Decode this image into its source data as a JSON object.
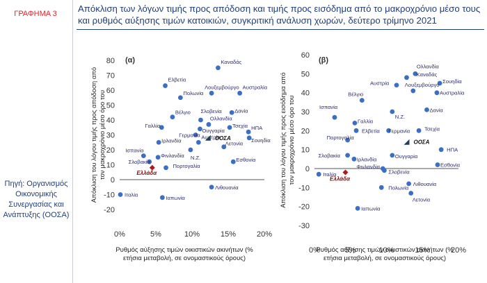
{
  "header": {
    "label": "ΓΡΑΦΗΜΑ 3",
    "title": "Απόκλιση των λόγων τιμής προς απόδοση και τιμής προς εισόδημα από το μακροχρόνιο μέσο τους και ρυθμός αύξησης τιμών κατοικιών, συγκριτική ανάλυση χωρών, δεύτερο τρίμηνο 2021",
    "source": "Πηγή: Οργανισμός Οικονομικής Συνεργασίας και Ανάπτυξης (ΟΟΣΑ)"
  },
  "colors": {
    "point": "#3a6fc4",
    "greece": "#b01a1f",
    "oecd": "#1f3e5a",
    "text": "#1f3e7a"
  },
  "chart_data": [
    {
      "type": "scatter",
      "panel_label": "(α)",
      "xlabel_lines": [
        "Ρυθμός αύξησης τιμών οικιστικών ακινήτων (%",
        "ετήσια μεταβολή, σε ονομαστικούς όρους)"
      ],
      "ylabel_lines": [
        "Απόκλιση του λόγου τιμής προς απόδοση από",
        "τον μακροχρόνιο μέσο όρο του"
      ],
      "xlim": [
        0,
        20
      ],
      "ylim": [
        -20,
        80
      ],
      "xticks": [
        0,
        5,
        10,
        15,
        20
      ],
      "xtick_labels": [
        "0%",
        "5%",
        "10%",
        "15%",
        "20%"
      ],
      "yticks": [
        -20,
        -10,
        0,
        10,
        20,
        30,
        40,
        50,
        60,
        70,
        80
      ],
      "points": [
        {
          "name": "Καναδάς",
          "x": 13.6,
          "y": 75,
          "dx": 4,
          "dy": -6
        },
        {
          "name": "Ελβετία",
          "x": 6.3,
          "y": 63,
          "dx": 4,
          "dy": -6
        },
        {
          "name": "Λουξεμβούργο",
          "x": 12.7,
          "y": 58,
          "dx": -10,
          "dy": -6
        },
        {
          "name": "Αυστραλία",
          "x": 16.6,
          "y": 58,
          "dx": 4,
          "dy": -6
        },
        {
          "name": "Πολωνία",
          "x": 8.4,
          "y": 55,
          "dx": 4,
          "dy": -4
        },
        {
          "name": "Βέλγιο",
          "x": 7.3,
          "y": 42,
          "dx": 4,
          "dy": -4
        },
        {
          "name": "Σλοβενία",
          "x": 11.2,
          "y": 40,
          "dx": 0,
          "dy": -10
        },
        {
          "name": "Δανία",
          "x": 15.5,
          "y": 45,
          "dx": 4,
          "dy": 0
        },
        {
          "name": "Γαλλία",
          "x": 5.8,
          "y": 35,
          "dx": -24,
          "dy": 0
        },
        {
          "name": "Ολλανδία",
          "x": 12.3,
          "y": 37,
          "dx": 2,
          "dy": -6
        },
        {
          "name": "Ουγγαρία",
          "x": 11.1,
          "y": 34,
          "dx": 3,
          "dy": 5
        },
        {
          "name": "Τσεχία",
          "x": 15.2,
          "y": 35,
          "dx": 4,
          "dy": 0
        },
        {
          "name": "Γερμανία",
          "x": 10.5,
          "y": 30,
          "dx": -24,
          "dy": 3
        },
        {
          "name": "ΗΠΑ",
          "x": 17.8,
          "y": 32,
          "dx": 4,
          "dy": -3
        },
        {
          "name": "Σουηδία",
          "x": 17.9,
          "y": 28,
          "dx": 3,
          "dy": 6
        },
        {
          "name": "Αυστρία",
          "x": 10.9,
          "y": 25,
          "dx": 4,
          "dy": -5
        },
        {
          "name": "Ιρλανδία",
          "x": 5.4,
          "y": 25,
          "dx": 4,
          "dy": 0
        },
        {
          "name": "Λετονία",
          "x": 14.4,
          "y": 22,
          "dx": 2,
          "dy": -2
        },
        {
          "name": "Ισπανία",
          "x": 3.3,
          "y": 16,
          "dx": -26,
          "dy": -5
        },
        {
          "name": "Φινλανδία",
          "x": 5.3,
          "y": 15,
          "dx": 4,
          "dy": 0
        },
        {
          "name": "Ν.Ζ.",
          "x": 9.8,
          "y": 20,
          "dx": 0,
          "dy": 14
        },
        {
          "name": "Εσθονία",
          "x": 15.7,
          "y": 12,
          "dx": 4,
          "dy": 0
        },
        {
          "name": "Σλοβακία",
          "x": 4.1,
          "y": 12,
          "dx": -30,
          "dy": 3
        },
        {
          "name": "Πορτογαλία",
          "x": 6.4,
          "y": 8,
          "dx": 10,
          "dy": 0
        },
        {
          "name": "Ιταλία",
          "x": 0.1,
          "y": -10,
          "dx": 6,
          "dy": 3
        },
        {
          "name": "Ιαπωνία",
          "x": 5.9,
          "y": -12,
          "dx": 5,
          "dy": 3
        },
        {
          "name": "Λιθουανία",
          "x": 12.7,
          "y": -5,
          "dx": 5,
          "dy": 3
        }
      ],
      "greece": {
        "name": "Ελλάδα",
        "x": 4.5,
        "y": 8,
        "dx": -8,
        "dy": 10
      },
      "oecd": {
        "name": "ΟΟΣΑ",
        "x": 12.2,
        "y": 28,
        "dx": 10,
        "dy": 0
      }
    },
    {
      "type": "scatter",
      "panel_label": "(β)",
      "xlabel_lines": [
        "Ρυθμός αύξησης τιμών οικιστικών ακινήτων (%",
        "ετήσια μεταβολή, σε ονομαστικούς όρους)"
      ],
      "ylabel_lines": [
        "Απόκλιση του λόγου τιμής προς εισόδημα από",
        "τον μακροχρόνιο μέσο όρο του"
      ],
      "xlim": [
        0,
        20
      ],
      "ylim": [
        -30,
        60
      ],
      "xticks": [
        0,
        5,
        10,
        15,
        20
      ],
      "xtick_labels": [
        "0%",
        "5%",
        "10%",
        "15%",
        "20%"
      ],
      "yticks": [
        -30,
        -20,
        -10,
        0,
        10,
        20,
        30,
        40,
        50,
        60
      ],
      "points": [
        {
          "name": "Ολλανδία",
          "x": 14.0,
          "y": 50,
          "dx": 2,
          "dy": -8
        },
        {
          "name": "Καναδάς",
          "x": 12.8,
          "y": 48,
          "dx": 14,
          "dy": -2
        },
        {
          "name": "Σουηδία",
          "x": 17.4,
          "y": 45,
          "dx": 4,
          "dy": 0
        },
        {
          "name": "Αυστρία",
          "x": 11.4,
          "y": 44,
          "dx": -38,
          "dy": 0
        },
        {
          "name": "Λουξεμβούργο",
          "x": 13.7,
          "y": 41,
          "dx": -12,
          "dy": -6
        },
        {
          "name": "Αυστραλία",
          "x": 17.0,
          "y": 40,
          "dx": 4,
          "dy": 3
        },
        {
          "name": "Βέλγιο",
          "x": 6.6,
          "y": 36,
          "dx": -20,
          "dy": -6
        },
        {
          "name": "Ισπανία",
          "x": 2.8,
          "y": 27,
          "dx": -22,
          "dy": -12
        },
        {
          "name": "Ν.Ζ.",
          "x": 10.8,
          "y": 30,
          "dx": 4,
          "dy": 10
        },
        {
          "name": "Δανία",
          "x": 15.6,
          "y": 31,
          "dx": 4,
          "dy": 3
        },
        {
          "name": "Γαλλία",
          "x": 5.6,
          "y": 24,
          "dx": 4,
          "dy": 0
        },
        {
          "name": "Ελβετία",
          "x": 5.8,
          "y": 20,
          "dx": 8,
          "dy": 3
        },
        {
          "name": "Γερμανία",
          "x": 10.3,
          "y": 20,
          "dx": 0,
          "dy": 3
        },
        {
          "name": "Τσεχία",
          "x": 14.5,
          "y": 20,
          "dx": 8,
          "dy": 0
        },
        {
          "name": "Πορτογαλία",
          "x": 4.6,
          "y": 15,
          "dx": -30,
          "dy": -1
        },
        {
          "name": "ΗΠΑ",
          "x": 17.6,
          "y": 10,
          "dx": 8,
          "dy": 3
        },
        {
          "name": "Σλοβακία",
          "x": 4.6,
          "y": 7,
          "dx": -42,
          "dy": 3
        },
        {
          "name": "Ιρλανδία",
          "x": 5.5,
          "y": 5,
          "dx": 4,
          "dy": 3
        },
        {
          "name": "Ουγγαρία",
          "x": 10.8,
          "y": 7,
          "dx": 4,
          "dy": 4
        },
        {
          "name": "Εσθονία",
          "x": 17.1,
          "y": 2,
          "dx": 4,
          "dy": 3
        },
        {
          "name": "Φινλανδία",
          "x": 9.5,
          "y": 0,
          "dx": -38,
          "dy": 0
        },
        {
          "name": "Σλοβενία",
          "x": 9.7,
          "y": -1,
          "dx": 6,
          "dy": 5
        },
        {
          "name": "Ιταλία",
          "x": 0.6,
          "y": -3,
          "dx": 6,
          "dy": 3
        },
        {
          "name": "Πολωνία",
          "x": 9.3,
          "y": -10,
          "dx": 10,
          "dy": 3
        },
        {
          "name": "Λιθουανία",
          "x": 13.1,
          "y": -8,
          "dx": 6,
          "dy": 3
        },
        {
          "name": "Λετονία",
          "x": 13.4,
          "y": -13,
          "dx": 2,
          "dy": 12
        },
        {
          "name": "Ιαπωνία",
          "x": 6.0,
          "y": -21,
          "dx": 5,
          "dy": 3
        }
      ],
      "greece": {
        "name": "Ελλάδα",
        "x": 4.3,
        "y": -2,
        "dx": -8,
        "dy": 12
      },
      "oecd": {
        "name": "ΟΟΣΑ",
        "x": 12.8,
        "y": 14,
        "dx": 10,
        "dy": 0
      }
    }
  ]
}
